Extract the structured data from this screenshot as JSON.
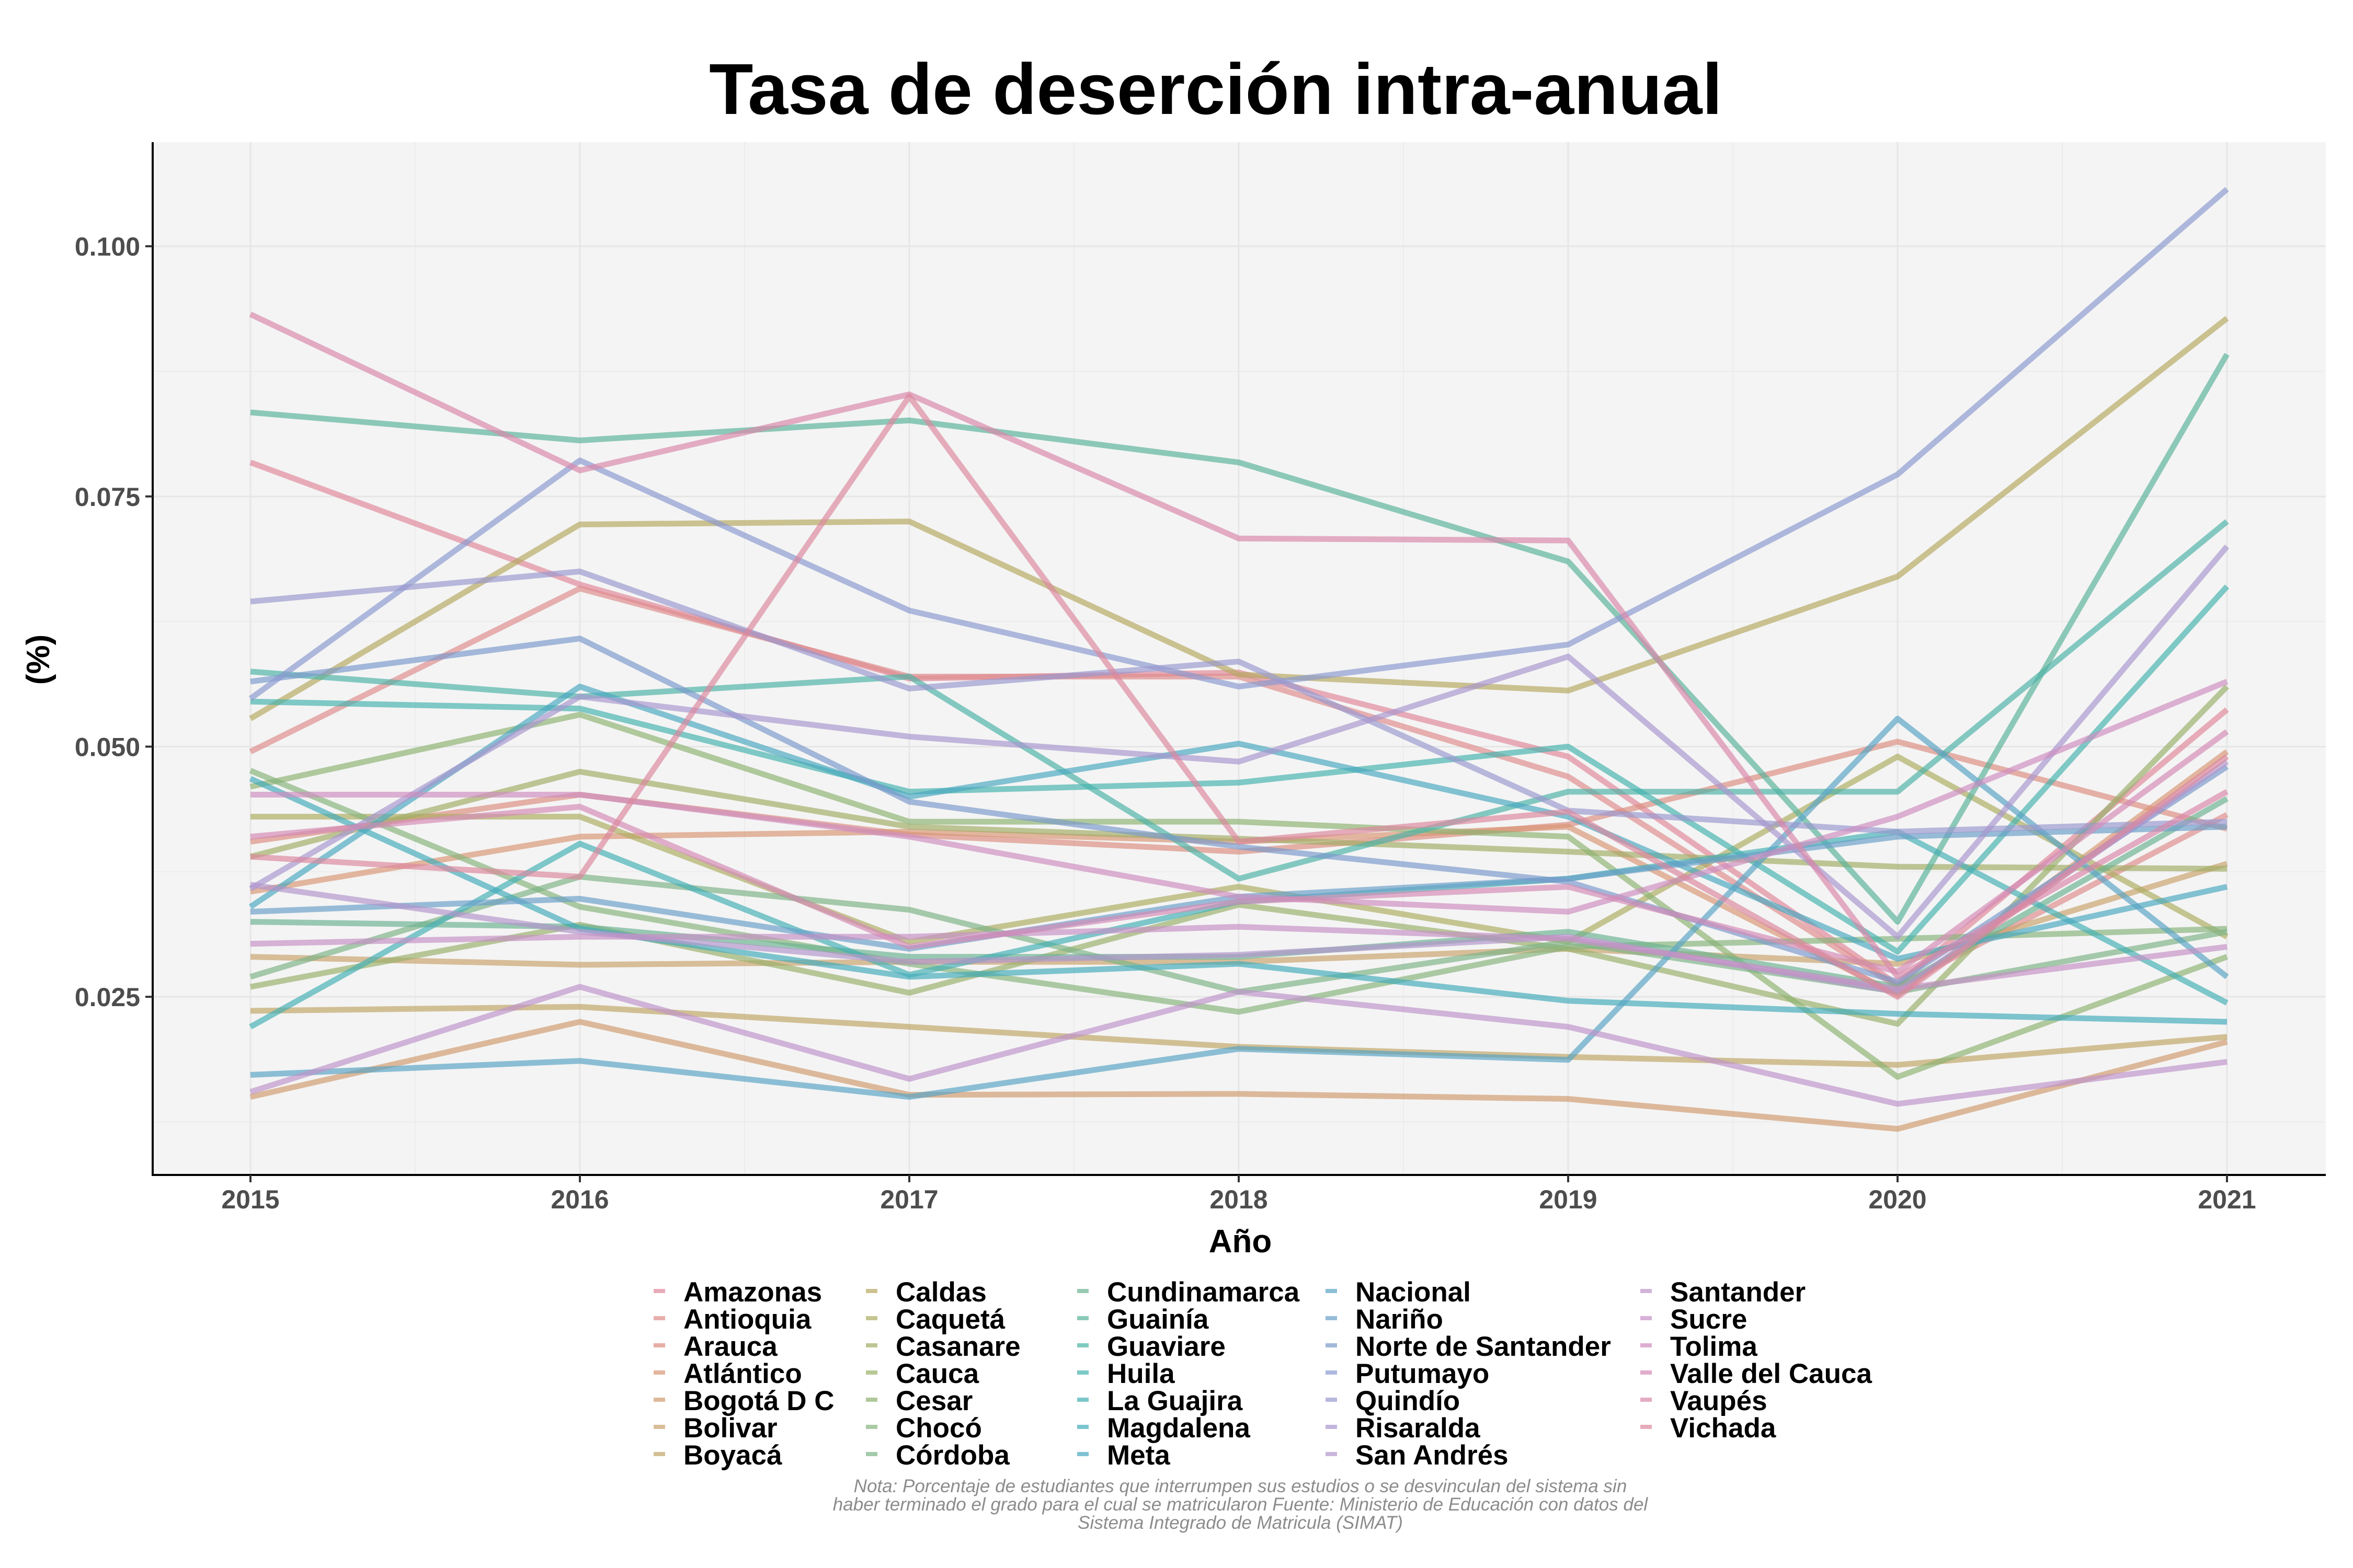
{
  "chart_data": {
    "type": "line",
    "title": "Tasa de deserción intra-anual",
    "xlabel": "Año",
    "ylabel": "(%)",
    "x": [
      2015,
      2016,
      2017,
      2018,
      2019,
      2020,
      2021
    ],
    "xlim": [
      2014.7,
      2021.3
    ],
    "ylim": [
      0.0072,
      0.1104
    ],
    "yticks": [
      0.025,
      0.05,
      0.075,
      0.1
    ],
    "ytick_labels": [
      "0.025",
      "0.050",
      "0.075",
      "0.100"
    ],
    "grid": true,
    "legend_position": "bottom",
    "series": [
      {
        "name": "Amazonas",
        "color": "#E0889A",
        "values": [
          0.0784,
          0.0662,
          0.0568,
          0.0574,
          0.049,
          0.0262,
          0.0537
        ]
      },
      {
        "name": "Antioquia",
        "color": "#DE8C8C",
        "values": [
          0.0495,
          0.0658,
          0.057,
          0.057,
          0.047,
          0.026,
          0.0432
        ]
      },
      {
        "name": "Arauca",
        "color": "#DC8D80",
        "values": [
          0.0405,
          0.0452,
          0.0412,
          0.0395,
          0.0422,
          0.0505,
          0.0418
        ]
      },
      {
        "name": "Atlántico",
        "color": "#D99675",
        "values": [
          0.0355,
          0.041,
          0.0415,
          0.0405,
          0.042,
          0.0252,
          0.0495
        ]
      },
      {
        "name": "Bogotá D C",
        "color": "#D09B6E",
        "values": [
          0.015,
          0.0225,
          0.0152,
          0.0153,
          0.0148,
          0.0118,
          0.0205
        ]
      },
      {
        "name": "Bolivar",
        "color": "#C8A26C",
        "values": [
          0.029,
          0.0282,
          0.0285,
          0.0285,
          0.0298,
          0.0283,
          0.0383
        ]
      },
      {
        "name": "Boyacá",
        "color": "#C0A566",
        "values": [
          0.0236,
          0.024,
          0.022,
          0.02,
          0.019,
          0.0182,
          0.021
        ]
      },
      {
        "name": "Caldas",
        "color": "#B6A860",
        "values": [
          0.0528,
          0.0722,
          0.0725,
          0.0572,
          0.0556,
          0.067,
          0.0928
        ]
      },
      {
        "name": "Caquetá",
        "color": "#ADAD62",
        "values": [
          0.043,
          0.043,
          0.0305,
          0.036,
          0.0305,
          0.049,
          0.031
        ]
      },
      {
        "name": "Casanare",
        "color": "#A2AD66",
        "values": [
          0.039,
          0.0475,
          0.042,
          0.0408,
          0.0395,
          0.038,
          0.0378
        ]
      },
      {
        "name": "Cauca",
        "color": "#9AB06A",
        "values": [
          0.026,
          0.0322,
          0.0254,
          0.0342,
          0.0298,
          0.0223,
          0.056
        ]
      },
      {
        "name": "Cesar",
        "color": "#8EB272",
        "values": [
          0.046,
          0.0532,
          0.0425,
          0.0425,
          0.041,
          0.017,
          0.029
        ]
      },
      {
        "name": "Chocó",
        "color": "#86B47C",
        "values": [
          0.0476,
          0.034,
          0.0283,
          0.0235,
          0.03,
          0.0308,
          0.0318
        ]
      },
      {
        "name": "Córdoba",
        "color": "#7EB386",
        "values": [
          0.027,
          0.037,
          0.0337,
          0.0255,
          0.0305,
          0.0255,
          0.0315
        ]
      },
      {
        "name": "Cundinamarca",
        "color": "#6CB292",
        "values": [
          0.0325,
          0.032,
          0.029,
          0.029,
          0.0315,
          0.026,
          0.0448
        ]
      },
      {
        "name": "Guainía",
        "color": "#5AB39A",
        "values": [
          0.0834,
          0.0806,
          0.0826,
          0.0784,
          0.0685,
          0.0325,
          0.0892
        ]
      },
      {
        "name": "Guaviare",
        "color": "#4CB3A6",
        "values": [
          0.0575,
          0.055,
          0.057,
          0.0368,
          0.0455,
          0.0455,
          0.0725
        ]
      },
      {
        "name": "Huila",
        "color": "#45B2AE",
        "values": [
          0.0545,
          0.0538,
          0.0455,
          0.0464,
          0.05,
          0.0295,
          0.066
        ]
      },
      {
        "name": "La Guajira",
        "color": "#44AFB4",
        "values": [
          0.022,
          0.0403,
          0.0272,
          0.0345,
          0.0368,
          0.0415,
          0.0244
        ]
      },
      {
        "name": "Magdalena",
        "color": "#42ABBA",
        "values": [
          0.0468,
          0.0318,
          0.027,
          0.0283,
          0.0246,
          0.0233,
          0.0225
        ]
      },
      {
        "name": "Meta",
        "color": "#4AA8C0",
        "values": [
          0.034,
          0.056,
          0.045,
          0.0503,
          0.043,
          0.0288,
          0.036
        ]
      },
      {
        "name": "Nacional",
        "color": "#58A4C4",
        "values": [
          0.0172,
          0.0186,
          0.015,
          0.0198,
          0.0187,
          0.0528,
          0.027
        ]
      },
      {
        "name": "Nariño",
        "color": "#6A9FC8",
        "values": [
          0.0335,
          0.0348,
          0.0298,
          0.035,
          0.0368,
          0.041,
          0.042
        ]
      },
      {
        "name": "Norte de Santander",
        "color": "#7B9ACB",
        "values": [
          0.0565,
          0.0608,
          0.0445,
          0.04,
          0.0365,
          0.0265,
          0.048
        ]
      },
      {
        "name": "Putumayo",
        "color": "#8B9AD0",
        "values": [
          0.0548,
          0.0786,
          0.0636,
          0.056,
          0.0602,
          0.0772,
          0.1057
        ]
      },
      {
        "name": "Quindío",
        "color": "#9A98CF",
        "values": [
          0.0645,
          0.0675,
          0.0558,
          0.0585,
          0.0436,
          0.0415,
          0.0425
        ]
      },
      {
        "name": "Risaralda",
        "color": "#A897CF",
        "values": [
          0.0358,
          0.055,
          0.051,
          0.0485,
          0.059,
          0.031,
          0.07
        ]
      },
      {
        "name": "San Andrés",
        "color": "#B395CC",
        "values": [
          0.0362,
          0.0315,
          0.0285,
          0.0292,
          0.031,
          0.0255,
          0.0485
        ]
      },
      {
        "name": "Santander",
        "color": "#BE94CA",
        "values": [
          0.0155,
          0.026,
          0.0168,
          0.0255,
          0.022,
          0.0143,
          0.0185
        ]
      },
      {
        "name": "Sucre",
        "color": "#C690C6",
        "values": [
          0.0303,
          0.031,
          0.031,
          0.032,
          0.0308,
          0.0258,
          0.03
        ]
      },
      {
        "name": "Tolima",
        "color": "#CE8DC0",
        "values": [
          0.0452,
          0.0452,
          0.041,
          0.035,
          0.0335,
          0.043,
          0.0565
        ]
      },
      {
        "name": "Valle del Cauca",
        "color": "#D48AB6",
        "values": [
          0.041,
          0.044,
          0.03,
          0.0345,
          0.036,
          0.0275,
          0.0515
        ]
      },
      {
        "name": "Vaupés",
        "color": "#D888AA",
        "values": [
          0.0932,
          0.0776,
          0.0852,
          0.0708,
          0.0706,
          0.027,
          0.0455
        ]
      },
      {
        "name": "Vichada",
        "color": "#DB879E",
        "values": [
          0.039,
          0.037,
          0.085,
          0.0405,
          0.0435,
          0.025,
          0.049
        ]
      }
    ],
    "note": [
      "Nota: Porcentaje de estudiantes que interrumpen sus estudios o se desvinculan del sistema sin",
      "haber terminado el grado para el cual se matricularon Fuente: Ministerio de Educación con datos del",
      "Sistema Integrado de Matricula (SIMAT)"
    ]
  }
}
